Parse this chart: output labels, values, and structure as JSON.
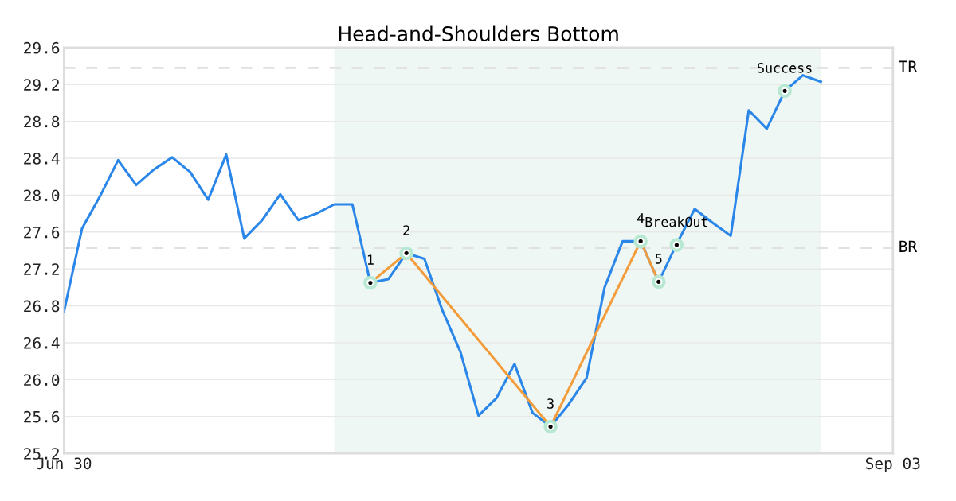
{
  "chart_data": {
    "type": "line",
    "title": "Head-and-Shoulders Bottom",
    "categories": [
      "Jun 30",
      null,
      null,
      null,
      null,
      null,
      null,
      null,
      null,
      null,
      null,
      null,
      null,
      null,
      null,
      null,
      null,
      null,
      null,
      null,
      null,
      null,
      null,
      null,
      null,
      null,
      null,
      null,
      null,
      null,
      null,
      null,
      null,
      null,
      null,
      null,
      null,
      null,
      null,
      null,
      null,
      null,
      null,
      null,
      null,
      null,
      "Sep 03"
    ],
    "ylim": [
      25.2,
      29.6
    ],
    "yticks": [
      {
        "value": 25.2,
        "label": "25.2"
      },
      {
        "value": 25.6,
        "label": "25.6"
      },
      {
        "value": 26.0,
        "label": "26.0"
      },
      {
        "value": 26.4,
        "label": "26.4"
      },
      {
        "value": 26.8,
        "label": "26.8"
      },
      {
        "value": 27.2,
        "label": "27.2"
      },
      {
        "value": 27.6,
        "label": "27.6"
      },
      {
        "value": 28.0,
        "label": "28.0"
      },
      {
        "value": 28.4,
        "label": "28.4"
      },
      {
        "value": 28.8,
        "label": "28.8"
      },
      {
        "value": 29.2,
        "label": "29.2"
      },
      {
        "value": 29.6,
        "label": "29.6"
      }
    ],
    "grid": "y",
    "series": [
      {
        "color": "#2a86e8",
        "values": [
          26.74,
          27.64,
          27.99,
          28.38,
          28.11,
          28.28,
          28.41,
          28.25,
          27.95,
          28.44,
          27.53,
          27.73,
          28.01,
          27.73,
          27.8,
          27.9,
          27.9,
          27.05,
          27.09,
          27.37,
          27.31,
          26.75,
          26.3,
          25.61,
          25.8,
          26.17,
          25.64,
          25.49,
          25.73,
          26.02,
          27.0,
          27.5,
          27.5,
          27.06,
          27.47,
          27.85,
          27.7,
          27.56,
          28.92,
          28.72,
          29.13,
          29.3,
          29.23,
          null,
          null,
          null,
          null
        ]
      },
      {
        "type": "line",
        "marker": "circle",
        "color": "#f39c3c",
        "values": [
          null,
          null,
          null,
          null,
          null,
          null,
          null,
          null,
          null,
          null,
          null,
          null,
          null,
          null,
          null,
          null,
          null,
          27.05,
          null,
          27.37,
          null,
          null,
          null,
          null,
          null,
          null,
          null,
          25.49,
          null,
          null,
          null,
          null,
          27.5,
          27.06,
          null,
          null,
          null,
          null,
          null,
          null,
          null,
          null,
          null,
          null,
          null,
          null,
          null
        ]
      },
      {
        "type": "scatter",
        "color": "#000000",
        "values": [
          null,
          null,
          null,
          null,
          null,
          null,
          null,
          null,
          null,
          null,
          null,
          null,
          null,
          null,
          null,
          null,
          null,
          null,
          null,
          null,
          null,
          null,
          null,
          null,
          null,
          null,
          null,
          null,
          null,
          null,
          null,
          null,
          null,
          null,
          27.46,
          null,
          null,
          null,
          null,
          null,
          29.13,
          null,
          null,
          null,
          null,
          null,
          null
        ]
      }
    ],
    "ref_lines": [
      {
        "axis": "y",
        "value": 29.38,
        "label": "TR",
        "color": "#e0e0e0",
        "line_style": "dashed"
      },
      {
        "axis": "y",
        "value": 27.43,
        "label": "BR",
        "color": "#e0e0e0",
        "line_style": "dashed"
      }
    ],
    "annotations": [
      {
        "text": "1",
        "y": 27.05
      },
      {
        "text": "2",
        "y": 27.37
      },
      {
        "text": "3",
        "y": 25.49
      },
      {
        "text": "4",
        "y": 27.5
      },
      {
        "text": "5",
        "y": 27.06
      },
      {
        "text": "BreakOut",
        "y": 27.46
      },
      {
        "text": "Success",
        "y": 29.13
      }
    ]
  }
}
